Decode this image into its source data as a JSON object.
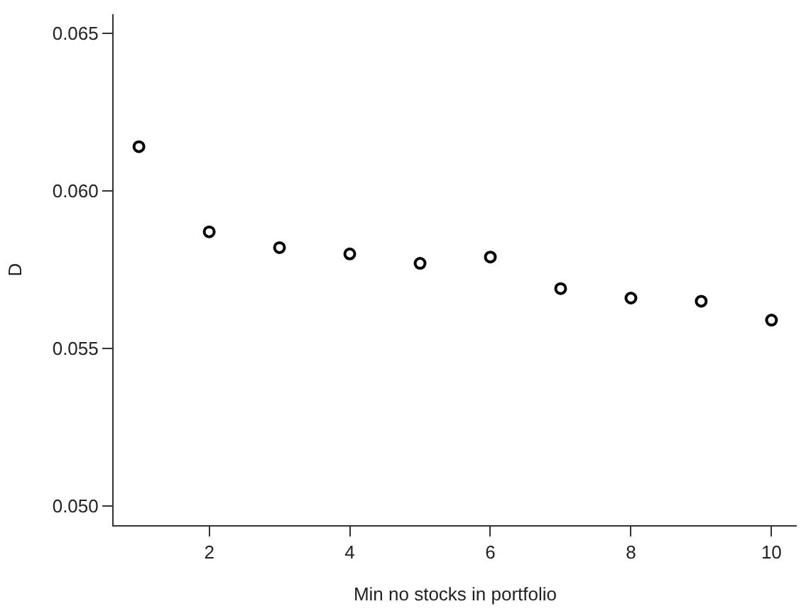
{
  "chart_data": {
    "type": "scatter",
    "xlabel": "Min no stocks in portfolio",
    "ylabel": "D",
    "x": [
      1,
      2,
      3,
      4,
      5,
      6,
      7,
      8,
      9,
      10
    ],
    "series": [
      {
        "color": "#000000",
        "values": [
          0.0614,
          0.0587,
          0.0582,
          0.058,
          0.0577,
          0.0579,
          0.0569,
          0.0566,
          0.0565,
          0.0559
        ]
      }
    ],
    "xlim": [
      0.64,
      10.36
    ],
    "ylim": [
      0.0494,
      0.0656
    ],
    "xticks": [
      2,
      4,
      6,
      8,
      10
    ],
    "yticks": [
      {
        "value": 0.05,
        "label": "0.050"
      },
      {
        "value": 0.055,
        "label": "0.055"
      },
      {
        "value": 0.06,
        "label": "0.060"
      },
      {
        "value": 0.065,
        "label": "0.065"
      }
    ],
    "marker": "circle"
  }
}
